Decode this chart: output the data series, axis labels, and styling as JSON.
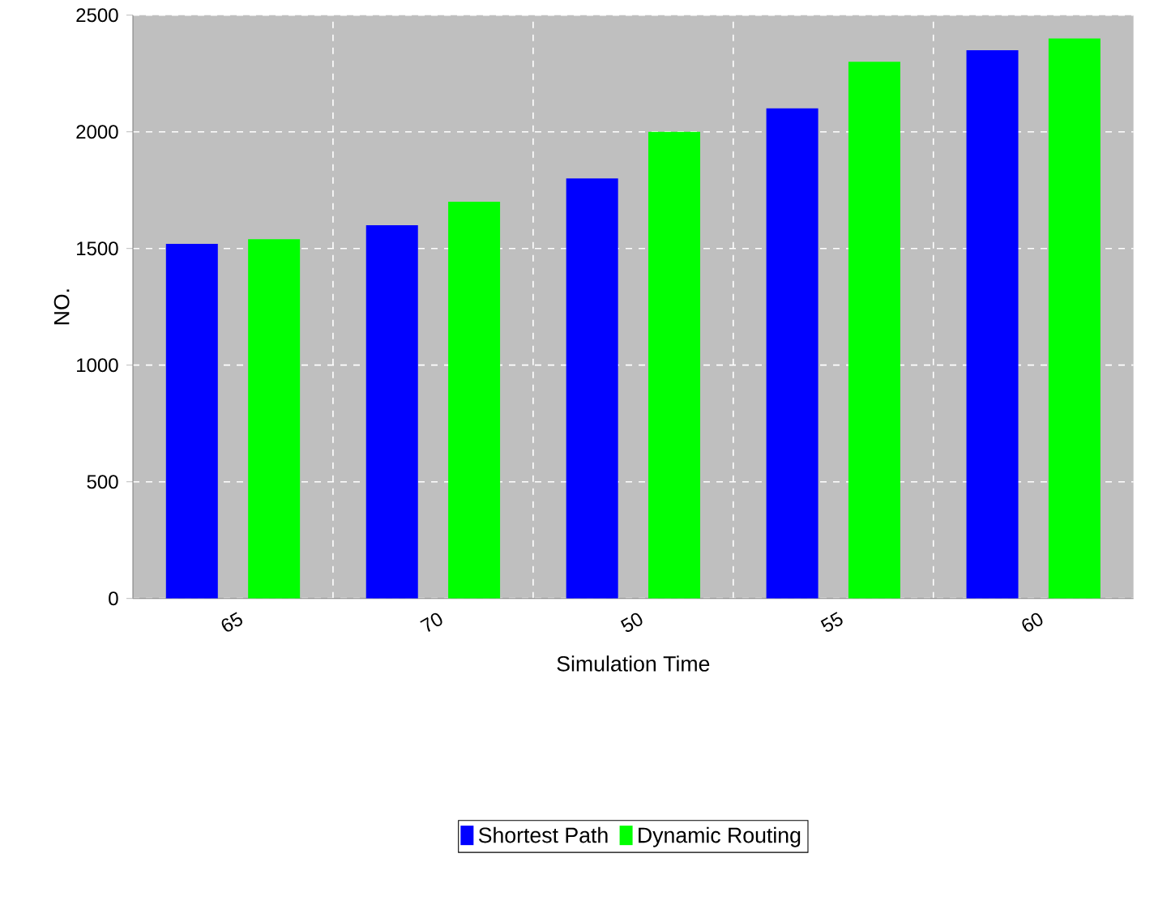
{
  "chart_data": {
    "type": "bar",
    "xlabel": "Simulation Time",
    "ylabel": "NO.",
    "categories": [
      "65",
      "70",
      "50",
      "55",
      "60"
    ],
    "series": [
      {
        "name": "Shortest Path",
        "color": "#0000ff",
        "values": [
          1520,
          1600,
          1800,
          2100,
          2350
        ]
      },
      {
        "name": "Dynamic Routing",
        "color": "#00ff00",
        "values": [
          1540,
          1700,
          2000,
          2300,
          2400
        ]
      }
    ],
    "ylim": [
      0,
      2500
    ],
    "yticks": [
      0,
      500,
      1000,
      1500,
      2000,
      2500
    ],
    "grid": true,
    "legend": "bottom"
  }
}
